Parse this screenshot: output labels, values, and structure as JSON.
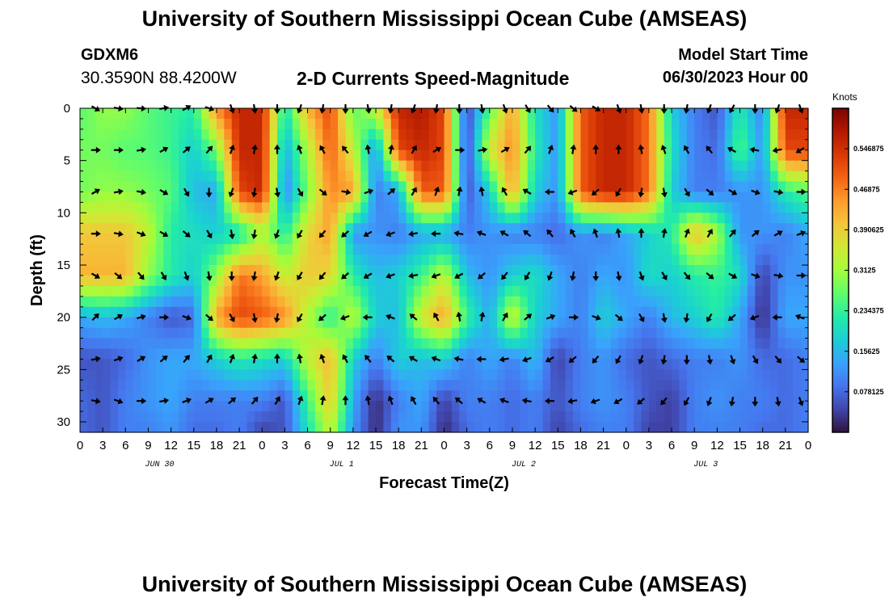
{
  "header": {
    "title": "University of Southern Mississippi Ocean Cube (AMSEAS)",
    "station": "GDXM6",
    "coords": "30.3590N  88.4200W",
    "subtitle": "2-D Currents Speed-Magnitude",
    "model_start_label": "Model Start Time",
    "model_start_value": "06/30/2023 Hour 00",
    "repeat_title": "University of Southern Mississippi Ocean Cube (AMSEAS)"
  },
  "colorbar": {
    "units": "Knots",
    "tick_labels": [
      "0.078125",
      "0.15625",
      "0.234375",
      "0.3125",
      "0.390625",
      "0.46875",
      "0.546875"
    ],
    "tick_values": [
      0.078125,
      0.15625,
      0.234375,
      0.3125,
      0.390625,
      0.46875,
      0.546875
    ],
    "range": [
      0,
      0.625
    ],
    "colors": [
      "#30123b",
      "#4145ab",
      "#4675ed",
      "#39a2fc",
      "#1bcfd4",
      "#24eca6",
      "#61fc6c",
      "#a4fc3b",
      "#d1e834",
      "#f3c63a",
      "#fe9b2d",
      "#f36315",
      "#d93806",
      "#b11901",
      "#7a0403"
    ]
  },
  "chart_data": {
    "type": "heatmap",
    "title": "2-D Currents Speed-Magnitude",
    "xlabel": "Forecast Time(Z)",
    "ylabel": "Depth (ft)",
    "x_tick_labels": [
      "0",
      "3",
      "6",
      "9",
      "12",
      "15",
      "18",
      "21",
      "0",
      "3",
      "6",
      "9",
      "12",
      "15",
      "18",
      "21",
      "0",
      "3",
      "6",
      "9",
      "12",
      "15",
      "18",
      "21",
      "0",
      "3",
      "6",
      "9",
      "12",
      "15",
      "18",
      "21",
      "0"
    ],
    "x_range_hours": [
      0,
      96
    ],
    "date_labels": [
      {
        "label": "JUN 30",
        "hour": 10.5
      },
      {
        "label": "JUL 1",
        "hour": 34.5
      },
      {
        "label": "JUL 2",
        "hour": 58.5
      },
      {
        "label": "JUL 3",
        "hour": 82.5
      }
    ],
    "y_ticks": [
      0,
      5,
      10,
      15,
      20,
      25,
      30
    ],
    "y_range_ft": [
      0,
      31
    ],
    "y_inverted": true,
    "value_units": "Knots",
    "depths_ft": [
      0,
      4,
      8,
      12,
      16,
      20,
      24,
      28,
      31
    ],
    "hours": [
      0,
      3,
      6,
      9,
      12,
      15,
      18,
      21,
      24,
      27,
      30,
      33,
      36,
      39,
      42,
      45,
      48,
      51,
      54,
      57,
      60,
      63,
      66,
      69,
      72,
      75,
      78,
      81,
      84,
      87,
      90,
      93,
      96
    ],
    "speed": [
      [
        0.26,
        0.3,
        0.3,
        0.26,
        0.24,
        0.22,
        0.46,
        0.56,
        0.56,
        0.2,
        0.42,
        0.52,
        0.26,
        0.34,
        0.56,
        0.58,
        0.52,
        0.04,
        0.26,
        0.44,
        0.2,
        0.12,
        0.5,
        0.56,
        0.56,
        0.48,
        0.18,
        0.1,
        0.06,
        0.22,
        0.1,
        0.56,
        0.56
      ],
      [
        0.28,
        0.28,
        0.26,
        0.26,
        0.24,
        0.18,
        0.28,
        0.56,
        0.56,
        0.14,
        0.32,
        0.5,
        0.34,
        0.12,
        0.52,
        0.56,
        0.52,
        0.04,
        0.36,
        0.46,
        0.22,
        0.12,
        0.5,
        0.56,
        0.56,
        0.48,
        0.2,
        0.1,
        0.08,
        0.26,
        0.12,
        0.52,
        0.52
      ],
      [
        0.28,
        0.3,
        0.3,
        0.28,
        0.26,
        0.16,
        0.14,
        0.52,
        0.56,
        0.1,
        0.28,
        0.46,
        0.44,
        0.1,
        0.14,
        0.5,
        0.5,
        0.06,
        0.18,
        0.44,
        0.18,
        0.12,
        0.5,
        0.56,
        0.56,
        0.48,
        0.18,
        0.1,
        0.1,
        0.12,
        0.12,
        0.22,
        0.26
      ],
      [
        0.4,
        0.4,
        0.4,
        0.34,
        0.22,
        0.2,
        0.18,
        0.2,
        0.32,
        0.22,
        0.38,
        0.44,
        0.12,
        0.12,
        0.1,
        0.14,
        0.14,
        0.1,
        0.12,
        0.1,
        0.1,
        0.08,
        0.12,
        0.1,
        0.14,
        0.18,
        0.22,
        0.42,
        0.32,
        0.12,
        0.12,
        0.1,
        0.14
      ],
      [
        0.42,
        0.42,
        0.42,
        0.3,
        0.22,
        0.18,
        0.3,
        0.48,
        0.44,
        0.34,
        0.4,
        0.38,
        0.22,
        0.16,
        0.18,
        0.24,
        0.34,
        0.16,
        0.12,
        0.18,
        0.2,
        0.14,
        0.1,
        0.14,
        0.12,
        0.2,
        0.18,
        0.22,
        0.24,
        0.2,
        0.04,
        0.12,
        0.12
      ],
      [
        0.14,
        0.16,
        0.14,
        0.1,
        0.06,
        0.08,
        0.44,
        0.52,
        0.5,
        0.46,
        0.32,
        0.22,
        0.34,
        0.18,
        0.16,
        0.36,
        0.44,
        0.24,
        0.14,
        0.36,
        0.18,
        0.14,
        0.1,
        0.18,
        0.14,
        0.1,
        0.16,
        0.18,
        0.22,
        0.14,
        0.02,
        0.14,
        0.14
      ],
      [
        0.06,
        0.06,
        0.08,
        0.12,
        0.14,
        0.14,
        0.18,
        0.22,
        0.2,
        0.18,
        0.34,
        0.42,
        0.18,
        0.1,
        0.18,
        0.16,
        0.18,
        0.1,
        0.14,
        0.1,
        0.16,
        0.04,
        0.1,
        0.12,
        0.08,
        0.06,
        0.08,
        0.1,
        0.1,
        0.12,
        0.08,
        0.08,
        0.1
      ],
      [
        0.08,
        0.06,
        0.1,
        0.12,
        0.14,
        0.1,
        0.1,
        0.1,
        0.1,
        0.06,
        0.24,
        0.4,
        0.14,
        0.02,
        0.1,
        0.14,
        0.04,
        0.1,
        0.1,
        0.08,
        0.1,
        0.06,
        0.1,
        0.12,
        0.1,
        0.06,
        0.04,
        0.1,
        0.12,
        0.1,
        0.1,
        0.08,
        0.1
      ],
      [
        0.08,
        0.06,
        0.1,
        0.1,
        0.12,
        0.08,
        0.08,
        0.1,
        0.04,
        0.06,
        0.2,
        0.34,
        0.12,
        0.02,
        0.12,
        0.12,
        0.02,
        0.08,
        0.1,
        0.08,
        0.1,
        0.04,
        0.08,
        0.1,
        0.1,
        0.04,
        0.04,
        0.1,
        0.1,
        0.1,
        0.08,
        0.08,
        0.1
      ]
    ],
    "arrow_depths_ft": [
      0,
      4,
      8,
      12,
      16,
      20,
      24,
      28
    ],
    "arrow_hours": [
      2,
      5,
      8,
      11,
      14,
      17,
      20,
      23,
      26,
      29,
      32,
      35,
      38,
      41,
      44,
      47,
      50,
      53,
      56,
      59,
      62,
      65,
      68,
      71,
      74,
      77,
      80,
      83,
      86,
      89,
      92,
      95
    ],
    "arrow_direction_deg": [
      [
        120,
        100,
        95,
        80,
        60,
        110,
        160,
        170,
        180,
        200,
        190,
        180,
        170,
        190,
        200,
        190,
        180,
        170,
        160,
        150,
        140,
        130,
        120,
        160,
        170,
        180,
        190,
        200,
        210,
        180,
        200,
        160
      ],
      [
        90,
        90,
        80,
        60,
        50,
        40,
        20,
        10,
        0,
        340,
        330,
        320,
        350,
        10,
        30,
        60,
        90,
        80,
        60,
        40,
        20,
        10,
        0,
        0,
        350,
        340,
        330,
        320,
        300,
        280,
        260,
        240
      ],
      [
        60,
        80,
        100,
        120,
        150,
        180,
        200,
        190,
        170,
        150,
        130,
        100,
        70,
        50,
        30,
        20,
        10,
        350,
        330,
        300,
        270,
        250,
        230,
        210,
        190,
        170,
        150,
        130,
        120,
        110,
        100,
        90
      ],
      [
        90,
        100,
        110,
        120,
        130,
        150,
        170,
        190,
        200,
        210,
        220,
        230,
        240,
        250,
        260,
        270,
        280,
        290,
        300,
        310,
        320,
        330,
        340,
        350,
        0,
        10,
        20,
        30,
        40,
        50,
        60,
        70
      ],
      [
        120,
        130,
        140,
        150,
        160,
        170,
        180,
        190,
        200,
        210,
        220,
        230,
        240,
        250,
        260,
        250,
        240,
        230,
        220,
        210,
        200,
        190,
        180,
        170,
        160,
        150,
        140,
        130,
        120,
        110,
        100,
        90
      ],
      [
        45,
        60,
        75,
        90,
        110,
        130,
        150,
        170,
        190,
        210,
        230,
        250,
        270,
        290,
        310,
        330,
        350,
        10,
        30,
        50,
        70,
        90,
        110,
        130,
        150,
        170,
        190,
        210,
        230,
        250,
        270,
        290
      ],
      [
        80,
        70,
        60,
        50,
        40,
        30,
        20,
        10,
        0,
        350,
        340,
        330,
        320,
        310,
        300,
        290,
        280,
        270,
        260,
        250,
        240,
        230,
        220,
        210,
        200,
        190,
        180,
        170,
        160,
        150,
        140,
        130
      ],
      [
        100,
        110,
        90,
        80,
        70,
        60,
        50,
        40,
        30,
        20,
        10,
        0,
        350,
        340,
        330,
        320,
        310,
        300,
        290,
        280,
        270,
        260,
        250,
        240,
        230,
        220,
        210,
        200,
        190,
        180,
        170,
        160
      ]
    ]
  }
}
